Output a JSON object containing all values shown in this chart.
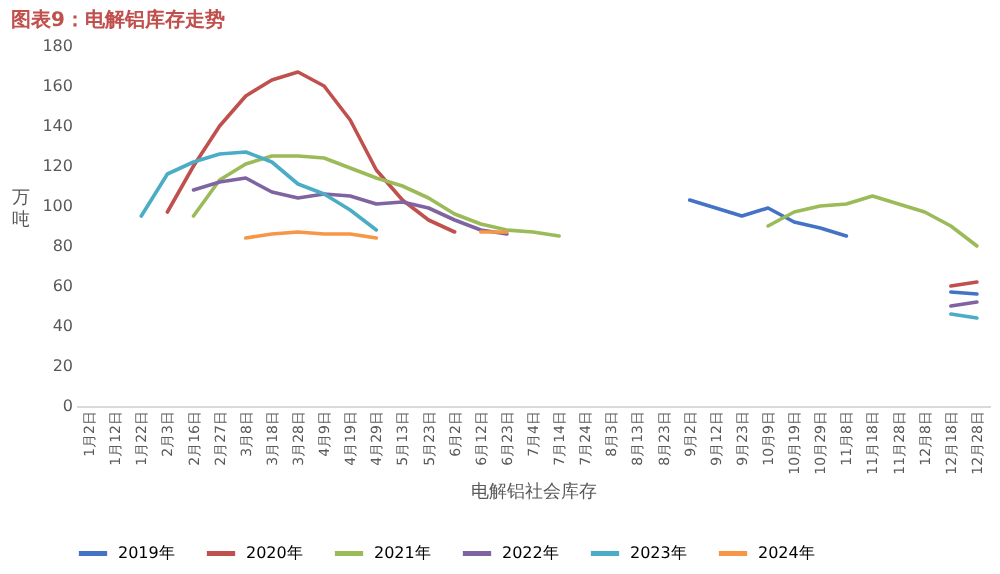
{
  "chart_data": {
    "type": "line",
    "title": "图表9：电解铝库存走势",
    "xlabel": "电解铝社会库存",
    "ylabel": "万吨",
    "categories": [
      "1月2日",
      "1月12日",
      "1月22日",
      "2月3日",
      "2月16日",
      "2月27日",
      "3月8日",
      "3月18日",
      "3月28日",
      "4月9日",
      "4月19日",
      "4月29日",
      "5月13日",
      "5月23日",
      "6月2日",
      "6月12日",
      "6月23日",
      "7月4日",
      "7月14日",
      "7月24日",
      "8月3日",
      "8月13日",
      "8月23日",
      "9月2日",
      "9月12日",
      "9月23日",
      "10月9日",
      "10月19日",
      "10月29日",
      "11月8日",
      "11月18日",
      "11月28日",
      "12月8日",
      "12月18日",
      "12月28日"
    ],
    "series": [
      {
        "name": "2019年",
        "color": "#4472c4",
        "values": [
          null,
          null,
          null,
          null,
          null,
          null,
          null,
          null,
          null,
          null,
          null,
          null,
          null,
          null,
          null,
          null,
          null,
          null,
          null,
          null,
          null,
          null,
          null,
          103,
          99,
          95,
          99,
          92,
          89,
          85,
          null,
          null,
          null,
          57,
          56
        ]
      },
      {
        "name": "2020年",
        "color": "#c0504d",
        "values": [
          null,
          null,
          null,
          97,
          120,
          140,
          155,
          163,
          167,
          160,
          143,
          118,
          103,
          93,
          87,
          null,
          null,
          null,
          null,
          null,
          null,
          null,
          null,
          null,
          null,
          null,
          null,
          null,
          null,
          null,
          null,
          null,
          null,
          60,
          62
        ]
      },
      {
        "name": "2021年",
        "color": "#9bbb59",
        "values": [
          null,
          null,
          null,
          null,
          95,
          113,
          121,
          125,
          125,
          124,
          119,
          114,
          110,
          104,
          96,
          91,
          88,
          87,
          85,
          null,
          null,
          null,
          null,
          null,
          null,
          null,
          90,
          97,
          100,
          101,
          105,
          101,
          97,
          90,
          80
        ]
      },
      {
        "name": "2022年",
        "color": "#8064a2",
        "values": [
          null,
          null,
          null,
          null,
          108,
          112,
          114,
          107,
          104,
          106,
          105,
          101,
          102,
          99,
          93,
          88,
          86,
          null,
          null,
          null,
          null,
          null,
          null,
          null,
          null,
          null,
          null,
          null,
          null,
          null,
          null,
          null,
          null,
          50,
          52
        ]
      },
      {
        "name": "2023年",
        "color": "#4bacc6",
        "values": [
          null,
          null,
          95,
          116,
          122,
          126,
          127,
          122,
          111,
          106,
          98,
          88,
          null,
          null,
          null,
          null,
          null,
          null,
          null,
          null,
          null,
          null,
          null,
          null,
          null,
          null,
          null,
          null,
          null,
          null,
          null,
          null,
          null,
          46,
          44
        ]
      },
      {
        "name": "2024年",
        "color": "#f79646",
        "values": [
          null,
          null,
          null,
          null,
          null,
          null,
          84,
          86,
          87,
          86,
          86,
          84,
          null,
          null,
          null,
          87,
          87,
          null,
          null,
          null,
          null,
          null,
          null,
          null,
          null,
          null,
          null,
          null,
          null,
          null,
          null,
          null,
          null,
          null,
          null
        ]
      }
    ],
    "ylim": [
      0,
      180
    ],
    "yticks": [
      0,
      20,
      40,
      60,
      80,
      100,
      120,
      140,
      160,
      180
    ],
    "grid": false,
    "legend": "bottom",
    "marker": "none",
    "line_style": "solid"
  }
}
